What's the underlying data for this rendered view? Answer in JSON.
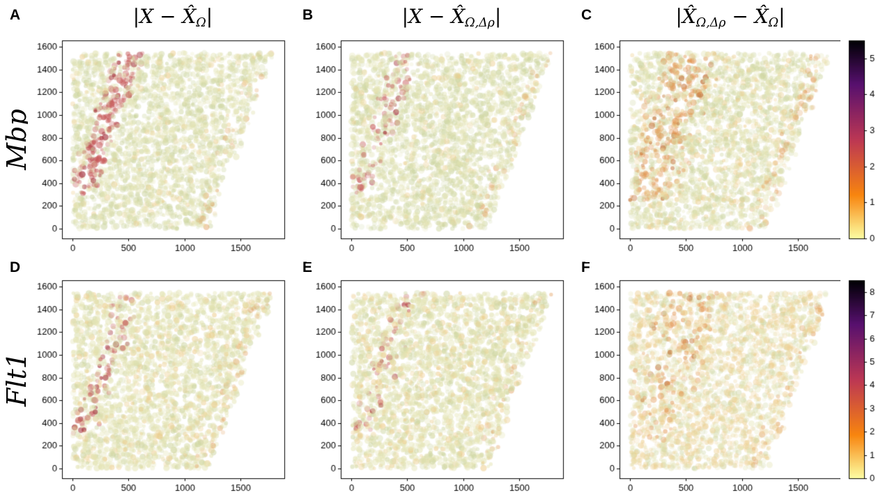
{
  "figure": {
    "background": "#ffffff",
    "row_labels": [
      "Mbp",
      "Flt1"
    ],
    "panel_letters": [
      "A",
      "B",
      "C",
      "D",
      "E",
      "F"
    ],
    "col_titles": [
      {
        "plain": "|X − X̂_Ω|",
        "parts": [
          {
            "t": "|X − X̂"
          },
          {
            "s": "Ω"
          },
          {
            "t": "|"
          }
        ]
      },
      {
        "plain": "|X − X̂_{Ω,Δρ}|",
        "parts": [
          {
            "t": "|X − X̂"
          },
          {
            "s": "Ω,Δρ"
          },
          {
            "t": "|"
          }
        ]
      },
      {
        "plain": "|X̂_{Ω,Δρ} − X̂_Ω|",
        "parts": [
          {
            "t": "|X̂"
          },
          {
            "s": "Ω,Δρ"
          },
          {
            "t": " − X̂"
          },
          {
            "s": "Ω"
          },
          {
            "t": "|"
          }
        ]
      }
    ]
  },
  "chart_data": {
    "type": "scatter",
    "layout": "2 rows (genes Mbp, Flt1) x 3 columns (absolute-difference maps), colorbar per row at right",
    "colormap_stops": [
      [
        "0",
        "#fcffa4"
      ],
      [
        "0.22",
        "#f8850f"
      ],
      [
        "0.5",
        "#bc3754"
      ],
      [
        "0.78",
        "#57106e"
      ],
      [
        "1",
        "#000004"
      ]
    ],
    "colorbars": [
      {
        "row": "Mbp",
        "ticks": [
          0,
          1,
          2,
          3,
          4,
          5
        ],
        "vmax": 5.5
      },
      {
        "row": "Flt1",
        "ticks": [
          0,
          1,
          2,
          3,
          4,
          5,
          6,
          7,
          8
        ],
        "vmax": 8.5
      }
    ],
    "panels": [
      {
        "id": "A",
        "gene": "Mbp",
        "title": "|X − X̂_Ω|",
        "x_ticks": [
          0,
          500,
          1000,
          1500
        ],
        "y_ticks": [
          0,
          200,
          400,
          600,
          800,
          1000,
          1200,
          1400,
          1600
        ],
        "xlim": [
          -95,
          1895
        ],
        "ylim": [
          -85,
          1655
        ],
        "points_model": {
          "seed": 11,
          "n": 3200,
          "baseAlpha": 0.38,
          "green": 0.45,
          "warm": 0.06,
          "band": 0.7,
          "bandW": 100,
          "bandX0": 70,
          "bandY0": 300,
          "bandX1": 520,
          "bandY1": 1545,
          "bandColor": [
            197,
            84,
            84
          ],
          "edge": 0.12
        }
      },
      {
        "id": "B",
        "gene": "Mbp",
        "title": "|X − X̂_{Ω,Δρ}|",
        "x_ticks": [
          0,
          500,
          1000,
          1500
        ],
        "y_ticks": [
          0,
          200,
          400,
          600,
          800,
          1000,
          1200,
          1400,
          1600
        ],
        "xlim": [
          -95,
          1895
        ],
        "ylim": [
          -85,
          1655
        ],
        "points_model": {
          "seed": 22,
          "n": 3200,
          "baseAlpha": 0.38,
          "green": 0.45,
          "warm": 0.06,
          "band": 0.32,
          "bandW": 100,
          "bandX0": 70,
          "bandY0": 300,
          "bandX1": 520,
          "bandY1": 1545,
          "bandColor": [
            197,
            84,
            84
          ],
          "edge": 0.1
        }
      },
      {
        "id": "C",
        "gene": "Mbp",
        "title": "|X̂_{Ω,Δρ} − X̂_Ω|",
        "x_ticks": [
          0,
          500,
          1000,
          1500
        ],
        "y_ticks": [
          0,
          200,
          400,
          600,
          800,
          1000,
          1200,
          1400,
          1600
        ],
        "xlim": [
          -95,
          1895
        ],
        "ylim": [
          -85,
          1655
        ],
        "points_model": {
          "seed": 33,
          "n": 3200,
          "baseAlpha": 0.38,
          "green": 0.45,
          "warm": 0.16,
          "band": 0.42,
          "bandW": 210,
          "bandX0": 120,
          "bandY0": 250,
          "bandX1": 560,
          "bandY1": 1545,
          "bandColor": [
            226,
            148,
            80
          ],
          "edge": 0.26
        }
      },
      {
        "id": "D",
        "gene": "Flt1",
        "title": "|X − X̂_Ω|",
        "x_ticks": [
          0,
          500,
          1000,
          1500
        ],
        "y_ticks": [
          0,
          200,
          400,
          600,
          800,
          1000,
          1200,
          1400,
          1600
        ],
        "xlim": [
          -95,
          1895
        ],
        "ylim": [
          -85,
          1655
        ],
        "points_model": {
          "seed": 44,
          "n": 3200,
          "baseAlpha": 0.42,
          "green": 0.25,
          "warm": 0.14,
          "band": 0.28,
          "bandW": 100,
          "bandX0": 70,
          "bandY0": 300,
          "bandX1": 520,
          "bandY1": 1545,
          "bandColor": [
            197,
            84,
            84
          ],
          "edge": 0.12
        }
      },
      {
        "id": "E",
        "gene": "Flt1",
        "title": "|X − X̂_{Ω,Δρ}|",
        "x_ticks": [
          0,
          500,
          1000,
          1500
        ],
        "y_ticks": [
          0,
          200,
          400,
          600,
          800,
          1000,
          1200,
          1400,
          1600
        ],
        "xlim": [
          -95,
          1895
        ],
        "ylim": [
          -85,
          1655
        ],
        "points_model": {
          "seed": 55,
          "n": 3200,
          "baseAlpha": 0.42,
          "green": 0.25,
          "warm": 0.14,
          "band": 0.18,
          "bandW": 100,
          "bandX0": 70,
          "bandY0": 300,
          "bandX1": 520,
          "bandY1": 1545,
          "bandColor": [
            197,
            84,
            84
          ],
          "edge": 0.1
        }
      },
      {
        "id": "F",
        "gene": "Flt1",
        "title": "|X̂_{Ω,Δρ} − X̂_Ω|",
        "x_ticks": [
          0,
          500,
          1000,
          1500
        ],
        "y_ticks": [
          0,
          200,
          400,
          600,
          800,
          1000,
          1200,
          1400,
          1600
        ],
        "xlim": [
          -95,
          1895
        ],
        "ylim": [
          -85,
          1655
        ],
        "points_model": {
          "seed": 66,
          "n": 3200,
          "baseAlpha": 0.34,
          "green": 0.3,
          "warm": 0.45,
          "band": 0.18,
          "bandW": 260,
          "bandX0": 120,
          "bandY0": 250,
          "bandX1": 560,
          "bandY1": 1545,
          "bandColor": [
            226,
            148,
            80
          ],
          "edge": 0.1
        }
      }
    ]
  }
}
